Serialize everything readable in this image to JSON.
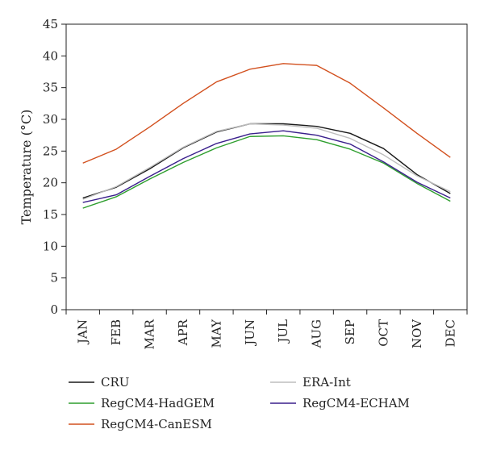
{
  "chart_data": {
    "type": "line",
    "ylabel": "Temperature (°C)",
    "xlabel": "",
    "ylim": [
      0,
      45
    ],
    "yticks": [
      0,
      5,
      10,
      15,
      20,
      25,
      30,
      35,
      40,
      45
    ],
    "categories": [
      "JAN",
      "FEB",
      "MAR",
      "APR",
      "MAY",
      "JUN",
      "JUL",
      "AUG",
      "SEP",
      "OCT",
      "NOV",
      "DEC"
    ],
    "grid": false,
    "legend_position": "bottom",
    "series": [
      {
        "name": "CRU",
        "color": "#1a1a1a",
        "values": [
          17.6,
          19.3,
          22.2,
          25.5,
          28.0,
          29.3,
          29.3,
          28.9,
          27.8,
          25.4,
          21.3,
          18.3
        ]
      },
      {
        "name": "ERA-Int",
        "color": "#bdbdbd",
        "values": [
          17.4,
          19.4,
          22.4,
          25.6,
          28.1,
          29.3,
          29.1,
          28.6,
          27.0,
          24.4,
          21.1,
          18.6
        ]
      },
      {
        "name": "RegCM4-HadGEM",
        "color": "#2e9e2e",
        "values": [
          16.0,
          17.8,
          20.6,
          23.2,
          25.5,
          27.3,
          27.4,
          26.8,
          25.3,
          23.1,
          19.9,
          17.1
        ]
      },
      {
        "name": "RegCM4-ECHAM",
        "color": "#3a1f8c",
        "values": [
          16.9,
          18.1,
          21.0,
          23.8,
          26.2,
          27.7,
          28.2,
          27.5,
          26.1,
          23.3,
          20.1,
          17.6
        ]
      },
      {
        "name": "RegCM4-CanESM",
        "color": "#d2501e",
        "values": [
          23.1,
          25.3,
          28.8,
          32.5,
          35.9,
          37.9,
          38.8,
          38.5,
          35.7,
          31.8,
          27.8,
          24.0
        ]
      }
    ]
  }
}
